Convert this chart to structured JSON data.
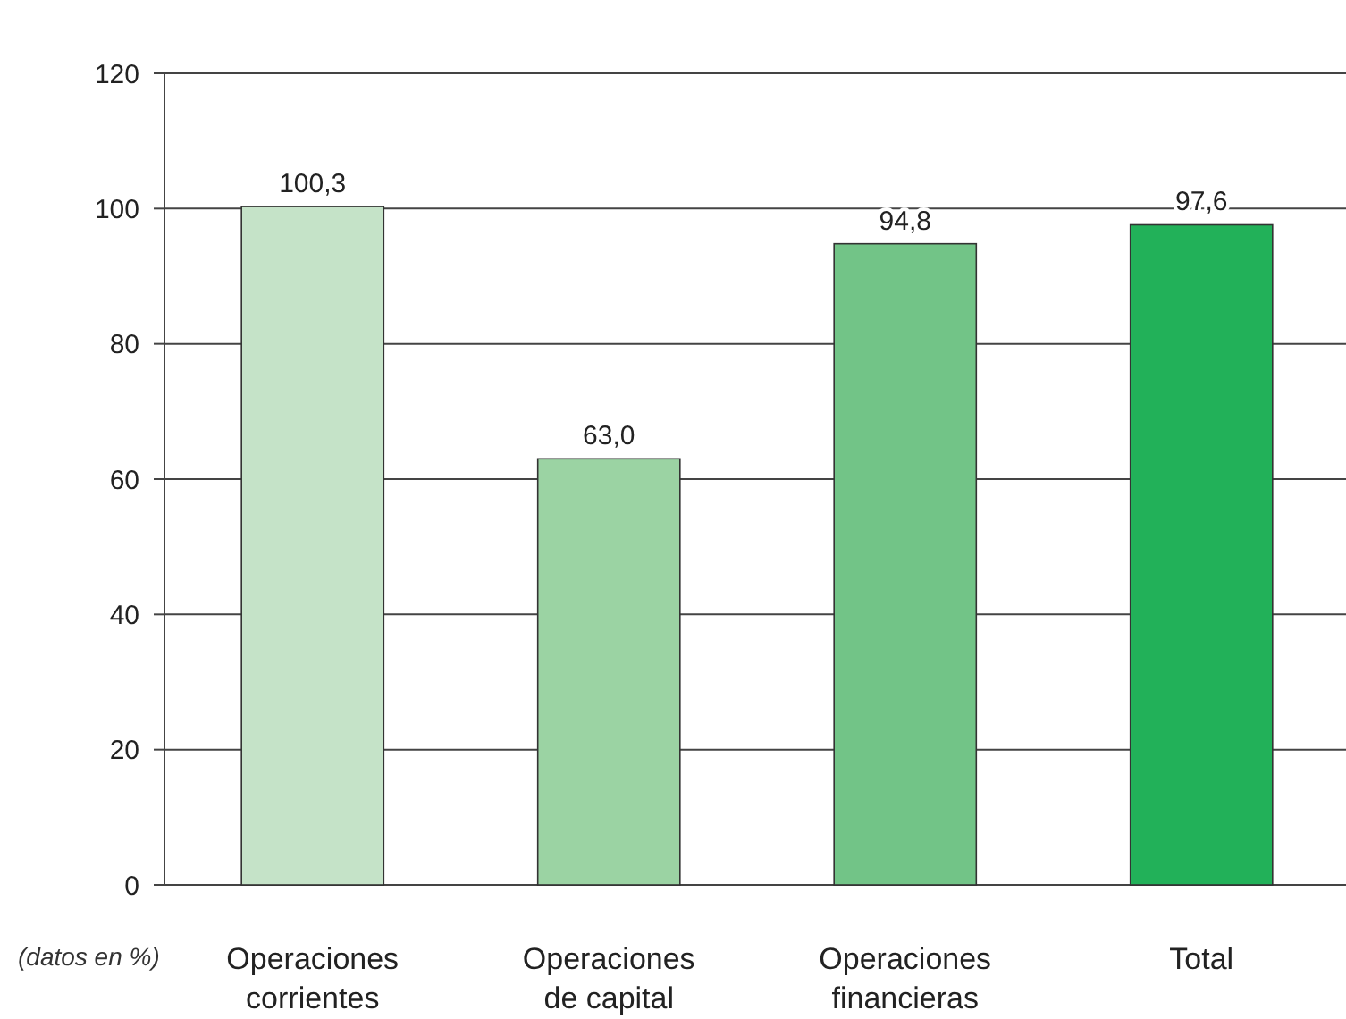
{
  "chart_data": {
    "type": "bar",
    "categories": [
      "Operaciones corrientes",
      "Operaciones de capital",
      "Operaciones financieras",
      "Total"
    ],
    "values": [
      100.3,
      63.0,
      94.8,
      97.6
    ],
    "value_labels": [
      "100,3",
      "63,0",
      "94,8",
      "97,6"
    ],
    "colors": [
      "#c5e3c8",
      "#9bd3a3",
      "#72c487",
      "#22b159"
    ],
    "ylim": [
      0,
      120
    ],
    "yticks": [
      0,
      20,
      40,
      60,
      80,
      100,
      120
    ],
    "grid": "y",
    "annotations": [
      "(datos en %)"
    ]
  }
}
